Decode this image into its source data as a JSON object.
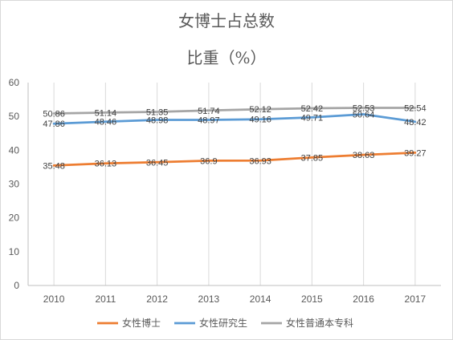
{
  "chart_data": {
    "type": "line",
    "title_line1": "女博士占总数",
    "title_line2": "比重（%）",
    "categories": [
      "2010",
      "2011",
      "2012",
      "2013",
      "2014",
      "2015",
      "2016",
      "2017"
    ],
    "y_ticks": [
      "0",
      "10",
      "20",
      "30",
      "40",
      "50",
      "60"
    ],
    "ylim": [
      0,
      60
    ],
    "grid": "vertical",
    "legend_position": "bottom",
    "series": [
      {
        "name": "女性博士",
        "color": "#ED7D31",
        "values": [
          35.48,
          36.13,
          36.45,
          36.9,
          36.93,
          37.85,
          38.63,
          39.27
        ],
        "labels": [
          "35.48",
          "36.13",
          "36.45",
          "36.9",
          "36.93",
          "37.85",
          "38.63",
          "39.27"
        ]
      },
      {
        "name": "女性研究生",
        "color": "#5B9BD5",
        "values": [
          47.86,
          48.46,
          48.98,
          48.97,
          49.16,
          49.71,
          50.64,
          48.42
        ],
        "labels": [
          "47.86",
          "48.46",
          "48.98",
          "48.97",
          "49.16",
          "49.71",
          "50.64",
          "48.42"
        ]
      },
      {
        "name": "女性普通本专科",
        "color": "#A5A5A5",
        "values": [
          50.86,
          51.14,
          51.35,
          51.74,
          52.12,
          52.42,
          52.53,
          52.54
        ],
        "labels": [
          "50.86",
          "51.14",
          "51.35",
          "51.74",
          "52.12",
          "52.42",
          "52.53",
          "52.54"
        ]
      }
    ]
  }
}
